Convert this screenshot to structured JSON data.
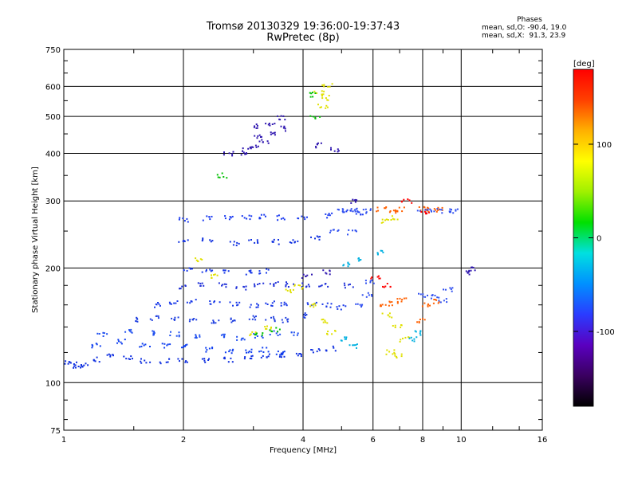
{
  "header": {
    "title": "Tromsø 20130329 19:36:00-19:37:43",
    "subtitle": "RwPretec (8p)"
  },
  "phases": {
    "label": "Phases",
    "line1": "mean, sd,O: -90.4, 19.0",
    "line2": "mean, sd,X:  91.3, 23.9"
  },
  "chart_data": {
    "type": "scatter",
    "title": "Tromsø 20130329 19:36:00-19:37:43",
    "subtitle": "RwPretec (8p)",
    "xlabel": "Frequency [MHz]",
    "ylabel": "Stationary phase Virtual Height [km]",
    "xscale": "log",
    "yscale": "log",
    "xlim": [
      1,
      16
    ],
    "ylim": [
      75,
      750
    ],
    "xticks": [
      1,
      2,
      4,
      6,
      8,
      10,
      16
    ],
    "yticks": [
      75,
      100,
      200,
      300,
      400,
      500,
      600,
      750
    ],
    "grid": true,
    "colorbar": {
      "label": "[deg]",
      "range": [
        -180,
        180
      ],
      "ticks": [
        100,
        0,
        -100
      ],
      "colormap": [
        "#000000",
        "#3a0060",
        "#5a00c0",
        "#2a3cff",
        "#0090ff",
        "#00e0e0",
        "#00e000",
        "#a0f000",
        "#ffff00",
        "#ffb000",
        "#ff4000",
        "#ff0000"
      ]
    },
    "series": [
      {
        "color": "#1030e0",
        "points": [
          [
            1.02,
            113
          ],
          [
            1.05,
            112
          ],
          [
            1.08,
            110
          ],
          [
            1.12,
            111
          ],
          [
            1.2,
            115
          ],
          [
            1.3,
            118
          ],
          [
            1.45,
            116
          ],
          [
            1.6,
            114
          ],
          [
            1.8,
            114
          ],
          [
            2.0,
            114
          ],
          [
            2.3,
            114
          ],
          [
            2.6,
            115
          ],
          [
            2.9,
            116
          ],
          [
            3.2,
            117
          ],
          [
            3.5,
            118
          ],
          [
            3.9,
            119
          ],
          [
            4.3,
            121
          ],
          [
            4.7,
            123
          ]
        ]
      },
      {
        "color": "#1040f0",
        "points": [
          [
            1.2,
            125
          ],
          [
            1.4,
            128
          ],
          [
            1.6,
            126
          ],
          [
            1.8,
            125
          ],
          [
            2.0,
            124
          ],
          [
            2.3,
            122
          ],
          [
            2.6,
            121
          ],
          [
            2.9,
            121
          ],
          [
            3.2,
            122
          ],
          [
            3.5,
            120
          ]
        ]
      },
      {
        "color": "#2050f0",
        "points": [
          [
            1.25,
            134
          ],
          [
            1.45,
            137
          ],
          [
            1.65,
            135
          ],
          [
            1.9,
            134
          ],
          [
            2.2,
            133
          ],
          [
            2.5,
            132
          ],
          [
            2.8,
            131
          ],
          [
            3.1,
            133
          ],
          [
            3.4,
            135
          ],
          [
            3.8,
            134
          ]
        ]
      },
      {
        "color": "#2040e0",
        "points": [
          [
            1.5,
            146
          ],
          [
            1.7,
            148
          ],
          [
            1.9,
            147
          ],
          [
            2.1,
            146
          ],
          [
            2.4,
            145
          ],
          [
            2.7,
            146
          ],
          [
            3.0,
            148
          ],
          [
            3.3,
            147
          ],
          [
            3.6,
            146
          ],
          [
            4.0,
            150
          ]
        ]
      },
      {
        "color": "#1838e8",
        "points": [
          [
            1.7,
            160
          ],
          [
            1.9,
            162
          ],
          [
            2.1,
            163
          ],
          [
            2.4,
            162
          ],
          [
            2.7,
            161
          ],
          [
            3.0,
            160
          ],
          [
            3.3,
            161
          ],
          [
            3.6,
            160
          ],
          [
            4.2,
            162
          ],
          [
            4.6,
            160
          ],
          [
            5.0,
            158
          ]
        ]
      },
      {
        "color": "#2030d8",
        "points": [
          [
            2.0,
            178
          ],
          [
            2.2,
            180
          ],
          [
            2.5,
            180
          ],
          [
            2.8,
            178
          ],
          [
            3.1,
            180
          ],
          [
            3.4,
            182
          ],
          [
            3.7,
            181
          ],
          [
            4.1,
            180
          ],
          [
            4.5,
            181
          ],
          [
            5.2,
            180
          ]
        ]
      },
      {
        "color": "#1838e8",
        "points": [
          [
            2.05,
            198
          ],
          [
            2.3,
            196
          ],
          [
            2.6,
            197
          ],
          [
            2.9,
            195
          ],
          [
            3.2,
            196
          ]
        ]
      },
      {
        "color": "#1030e0",
        "points": [
          [
            2.0,
            235
          ],
          [
            2.3,
            238
          ],
          [
            2.7,
            232
          ],
          [
            3.0,
            236
          ],
          [
            3.4,
            234
          ],
          [
            3.8,
            236
          ],
          [
            4.3,
            240
          ]
        ]
      },
      {
        "color": "#1838f0",
        "points": [
          [
            2.0,
            268
          ],
          [
            2.3,
            270
          ],
          [
            2.6,
            271
          ],
          [
            2.9,
            272
          ],
          [
            3.2,
            272
          ],
          [
            3.5,
            271
          ],
          [
            4.0,
            270
          ],
          [
            4.6,
            275
          ],
          [
            5.2,
            280
          ],
          [
            5.6,
            280
          ]
        ]
      },
      {
        "color": "#3018b0",
        "points": [
          [
            2.6,
            398
          ],
          [
            2.8,
            402
          ],
          [
            3.0,
            415
          ],
          [
            3.2,
            430
          ],
          [
            3.4,
            450
          ],
          [
            3.6,
            465
          ],
          [
            3.3,
            480
          ],
          [
            3.5,
            495
          ],
          [
            3.1,
            440
          ],
          [
            3.0,
            470
          ],
          [
            2.9,
            410
          ]
        ]
      },
      {
        "color": "#e0e000",
        "points": [
          [
            3.7,
            175
          ],
          [
            3.9,
            178
          ],
          [
            4.2,
            160
          ],
          [
            4.5,
            145
          ],
          [
            4.7,
            135
          ],
          [
            4.6,
            560
          ],
          [
            4.5,
            530
          ],
          [
            4.6,
            600
          ],
          [
            4.4,
            580
          ],
          [
            6.5,
            265
          ],
          [
            6.8,
            270
          ],
          [
            6.5,
            150
          ],
          [
            6.9,
            140
          ],
          [
            7.2,
            130
          ],
          [
            6.6,
            120
          ],
          [
            7.0,
            118
          ],
          [
            3.0,
            135
          ],
          [
            3.3,
            140
          ],
          [
            2.4,
            190
          ],
          [
            2.2,
            210
          ]
        ]
      },
      {
        "color": "#ff6000",
        "points": [
          [
            6.3,
            285
          ],
          [
            6.7,
            282
          ],
          [
            7.0,
            285
          ],
          [
            6.4,
            160
          ],
          [
            6.8,
            162
          ],
          [
            7.1,
            165
          ],
          [
            8.0,
            285
          ],
          [
            8.4,
            285
          ],
          [
            8.8,
            285
          ],
          [
            8.2,
            160
          ],
          [
            8.6,
            163
          ],
          [
            7.9,
            145
          ]
        ]
      },
      {
        "color": "#3050f0",
        "points": [
          [
            5.0,
            283
          ],
          [
            5.4,
            283
          ],
          [
            5.8,
            282
          ],
          [
            4.8,
            250
          ],
          [
            5.3,
            248
          ],
          [
            5.5,
            160
          ],
          [
            5.8,
            170
          ],
          [
            5.9,
            185
          ],
          [
            8.0,
            282
          ],
          [
            8.6,
            282
          ],
          [
            9.2,
            282
          ],
          [
            9.6,
            282
          ],
          [
            8.0,
            170
          ],
          [
            8.5,
            168
          ],
          [
            9.0,
            165
          ],
          [
            9.3,
            175
          ]
        ]
      },
      {
        "color": "#00b0e0",
        "points": [
          [
            5.2,
            205
          ],
          [
            5.6,
            210
          ],
          [
            6.2,
            220
          ],
          [
            5.0,
            130
          ],
          [
            5.4,
            125
          ],
          [
            7.5,
            130
          ],
          [
            7.8,
            135
          ]
        ]
      },
      {
        "color": "#3018b0",
        "points": [
          [
            4.4,
            420
          ],
          [
            4.8,
            410
          ],
          [
            4.1,
            190
          ],
          [
            4.6,
            195
          ],
          [
            10.5,
            195
          ],
          [
            10.6,
            198
          ],
          [
            5.3,
            300
          ]
        ]
      },
      {
        "color": "#00c000",
        "points": [
          [
            3.1,
            135
          ],
          [
            3.4,
            138
          ],
          [
            4.3,
            500
          ],
          [
            4.2,
            570
          ],
          [
            2.5,
            350
          ]
        ]
      },
      {
        "color": "#ff0000",
        "points": [
          [
            6.1,
            190
          ],
          [
            6.5,
            180
          ],
          [
            7.3,
            300
          ],
          [
            8.1,
            278
          ]
        ]
      }
    ]
  }
}
